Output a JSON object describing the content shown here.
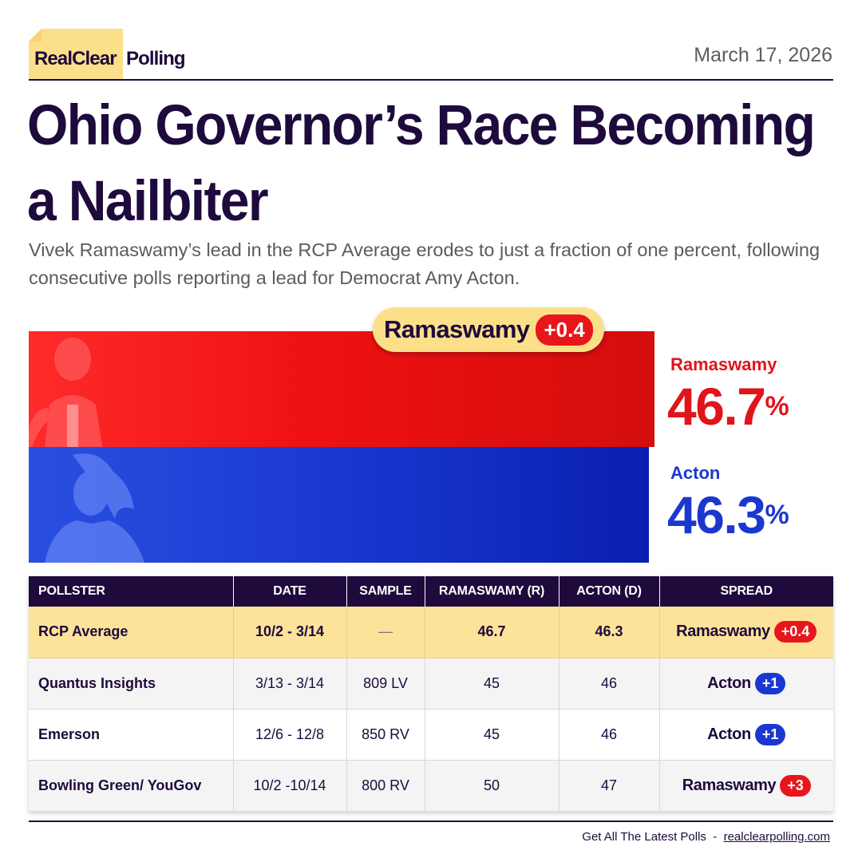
{
  "brand": {
    "real": "RealClear",
    "polling": "Polling"
  },
  "date": "March 17, 2026",
  "headline": "Ohio Governor’s Race Becoming a Nailbiter",
  "subheadline": "Vivek Ramaswamy’s lead in the RCP Average erodes to just a fraction of one percent, following consecutive polls reporting a lead for Democrat Amy Acton.",
  "spread_callout": {
    "leader": "Ramaswamy",
    "value": "+0.4"
  },
  "chart_data": {
    "type": "bar",
    "orientation": "horizontal",
    "categories": [
      "Ramaswamy",
      "Acton"
    ],
    "values": [
      46.7,
      46.3
    ],
    "value_labels": [
      "46.7",
      "46.3"
    ],
    "unit": "%",
    "colors": [
      "#e0141a",
      "#1a38cf"
    ]
  },
  "table": {
    "headers": [
      "POLLSTER",
      "DATE",
      "SAMPLE",
      "RAMASWAMY (R)",
      "ACTON (D)",
      "SPREAD"
    ],
    "rows": [
      {
        "pollster": "RCP Average",
        "date": "10/2 - 3/14",
        "sample": "—",
        "r": "46.7",
        "d": "46.3",
        "spread_name": "Ramaswamy",
        "spread_value": "+0.4",
        "party": "R"
      },
      {
        "pollster": "Quantus Insights",
        "date": "3/13 - 3/14",
        "sample": "809 LV",
        "r": "45",
        "d": "46",
        "spread_name": "Acton",
        "spread_value": "+1",
        "party": "D"
      },
      {
        "pollster": "Emerson",
        "date": "12/6 - 12/8",
        "sample": "850 RV",
        "r": "45",
        "d": "46",
        "spread_name": "Acton",
        "spread_value": "+1",
        "party": "D"
      },
      {
        "pollster": "Bowling Green/ YouGov",
        "date": "10/2 -10/14",
        "sample": "800 RV",
        "r": "50",
        "d": "47",
        "spread_name": "Ramaswamy",
        "spread_value": "+3",
        "party": "R"
      }
    ]
  },
  "footer": {
    "text": "Get All The Latest Polls  -  ",
    "link": "realclearpolling.com"
  },
  "colors": {
    "navy": "#1e0a3c",
    "yellow": "#fbe089",
    "red": "#e0141a",
    "blue": "#1a38cf"
  }
}
